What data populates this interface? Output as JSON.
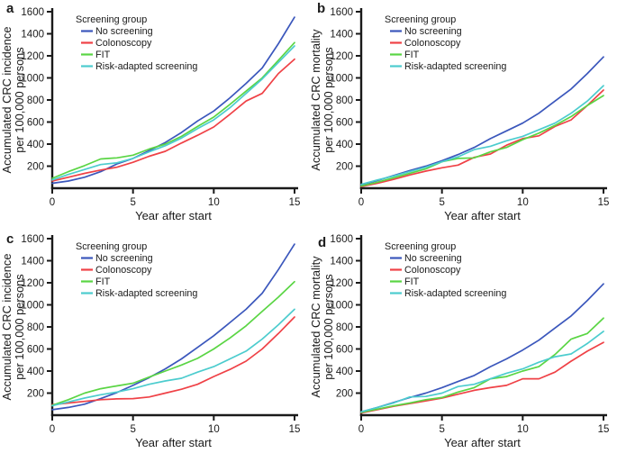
{
  "figure": {
    "background": "#ffffff",
    "axis_color": "#1a1a1a",
    "legend_title": "Screening group"
  },
  "chart_data": [
    {
      "panel": "a",
      "type": "line",
      "xlabel": "Year after start",
      "ylabel_line1": "Accumulated CRC incidence",
      "ylabel_line2": "per 100,000 persons",
      "xlim": [
        0,
        15
      ],
      "ylim": [
        0,
        1600
      ],
      "xticks": [
        0,
        5,
        10,
        15
      ],
      "yticks": [
        200,
        400,
        600,
        800,
        1000,
        1200,
        1400,
        1600
      ],
      "grid": false,
      "legend_title": "Screening group",
      "legend_position": "top-left-inside",
      "x": [
        0,
        1,
        2,
        3,
        4,
        5,
        6,
        7,
        8,
        9,
        10,
        11,
        12,
        13,
        14,
        15
      ],
      "series": [
        {
          "name": "No screening",
          "color": "#3b57bc",
          "values": [
            45,
            65,
            100,
            150,
            220,
            270,
            340,
            415,
            505,
            610,
            700,
            820,
            950,
            1090,
            1310,
            1550
          ]
        },
        {
          "name": "Colonoscopy",
          "color": "#ef4146",
          "values": [
            65,
            100,
            135,
            165,
            190,
            235,
            290,
            335,
            410,
            480,
            555,
            670,
            790,
            860,
            1040,
            1170
          ]
        },
        {
          "name": "FIT",
          "color": "#5ad544",
          "values": [
            90,
            150,
            205,
            265,
            275,
            300,
            355,
            400,
            470,
            560,
            645,
            760,
            880,
            1000,
            1160,
            1320
          ]
        },
        {
          "name": "Risk-adapted screening",
          "color": "#4cccce",
          "values": [
            75,
            125,
            170,
            215,
            230,
            270,
            330,
            385,
            455,
            540,
            620,
            730,
            860,
            990,
            1140,
            1290
          ]
        }
      ]
    },
    {
      "panel": "b",
      "type": "line",
      "xlabel": "Year after start",
      "ylabel_line1": "Accumulated CRC mortality",
      "ylabel_line2": "per 100,000 persons",
      "xlim": [
        0,
        15
      ],
      "ylim": [
        0,
        1600
      ],
      "xticks": [
        0,
        5,
        10,
        15
      ],
      "yticks": [
        200,
        400,
        600,
        800,
        1000,
        1200,
        1400,
        1600
      ],
      "grid": false,
      "legend_title": "Screening group",
      "legend_position": "top-left-inside",
      "x": [
        0,
        1,
        2,
        3,
        4,
        5,
        6,
        7,
        8,
        9,
        10,
        11,
        12,
        13,
        14,
        15
      ],
      "series": [
        {
          "name": "No screening",
          "color": "#3b57bc",
          "values": [
            30,
            70,
            115,
            160,
            200,
            250,
            305,
            370,
            450,
            520,
            590,
            680,
            790,
            900,
            1040,
            1190
          ]
        },
        {
          "name": "Colonoscopy",
          "color": "#ef4146",
          "values": [
            15,
            45,
            80,
            120,
            155,
            185,
            210,
            280,
            310,
            390,
            450,
            475,
            560,
            620,
            750,
            890
          ]
        },
        {
          "name": "FIT",
          "color": "#5ad544",
          "values": [
            20,
            55,
            95,
            135,
            175,
            240,
            270,
            275,
            330,
            370,
            440,
            500,
            570,
            650,
            750,
            840
          ]
        },
        {
          "name": "Risk-adapted screening",
          "color": "#4cccce",
          "values": [
            35,
            75,
            110,
            150,
            190,
            240,
            285,
            350,
            380,
            430,
            470,
            530,
            590,
            680,
            790,
            930
          ]
        }
      ]
    },
    {
      "panel": "c",
      "type": "line",
      "xlabel": "Year after start",
      "ylabel_line1": "Accumulated CRC incidence",
      "ylabel_line2": "per 100,000 persons",
      "xlim": [
        0,
        15
      ],
      "ylim": [
        0,
        1600
      ],
      "xticks": [
        0,
        5,
        10,
        15
      ],
      "yticks": [
        200,
        400,
        600,
        800,
        1000,
        1200,
        1400,
        1600
      ],
      "grid": false,
      "legend_title": "Screening group",
      "legend_position": "top-left-inside",
      "x": [
        0,
        1,
        2,
        3,
        4,
        5,
        6,
        7,
        8,
        9,
        10,
        11,
        12,
        13,
        14,
        15
      ],
      "series": [
        {
          "name": "No screening",
          "color": "#3b57bc",
          "values": [
            50,
            70,
            100,
            150,
            205,
            270,
            340,
            420,
            510,
            615,
            720,
            840,
            960,
            1105,
            1320,
            1550
          ]
        },
        {
          "name": "Colonoscopy",
          "color": "#ef4146",
          "values": [
            95,
            110,
            125,
            140,
            148,
            150,
            165,
            200,
            235,
            280,
            350,
            415,
            490,
            600,
            740,
            890
          ]
        },
        {
          "name": "FIT",
          "color": "#5ad544",
          "values": [
            90,
            140,
            200,
            240,
            265,
            290,
            345,
            400,
            455,
            515,
            600,
            700,
            810,
            940,
            1070,
            1210
          ]
        },
        {
          "name": "Risk-adapted screening",
          "color": "#4cccce",
          "values": [
            85,
            120,
            155,
            185,
            210,
            240,
            280,
            310,
            335,
            390,
            440,
            510,
            580,
            690,
            820,
            960
          ]
        }
      ]
    },
    {
      "panel": "d",
      "type": "line",
      "xlabel": "Year after start",
      "ylabel_line1": "Accumulated CRC mortality",
      "ylabel_line2": "per 100,000 persons",
      "xlim": [
        0,
        15
      ],
      "ylim": [
        0,
        1600
      ],
      "xticks": [
        0,
        5,
        10,
        15
      ],
      "yticks": [
        200,
        400,
        600,
        800,
        1000,
        1200,
        1400,
        1600
      ],
      "grid": false,
      "legend_title": "Screening group",
      "legend_position": "top-left-inside",
      "x": [
        0,
        1,
        2,
        3,
        4,
        5,
        6,
        7,
        8,
        9,
        10,
        11,
        12,
        13,
        14,
        15
      ],
      "series": [
        {
          "name": "No screening",
          "color": "#3b57bc",
          "values": [
            30,
            70,
            115,
            160,
            200,
            250,
            305,
            360,
            440,
            510,
            590,
            680,
            790,
            900,
            1040,
            1190
          ]
        },
        {
          "name": "Colonoscopy",
          "color": "#ef4146",
          "values": [
            20,
            50,
            80,
            105,
            130,
            155,
            190,
            225,
            250,
            270,
            330,
            330,
            390,
            490,
            580,
            660
          ]
        },
        {
          "name": "FIT",
          "color": "#5ad544",
          "values": [
            25,
            55,
            85,
            110,
            140,
            160,
            210,
            250,
            330,
            350,
            400,
            440,
            550,
            690,
            740,
            880
          ]
        },
        {
          "name": "Risk-adapted screening",
          "color": "#4cccce",
          "values": [
            30,
            70,
            110,
            165,
            170,
            200,
            260,
            280,
            330,
            380,
            420,
            480,
            530,
            555,
            650,
            760
          ]
        }
      ]
    }
  ]
}
